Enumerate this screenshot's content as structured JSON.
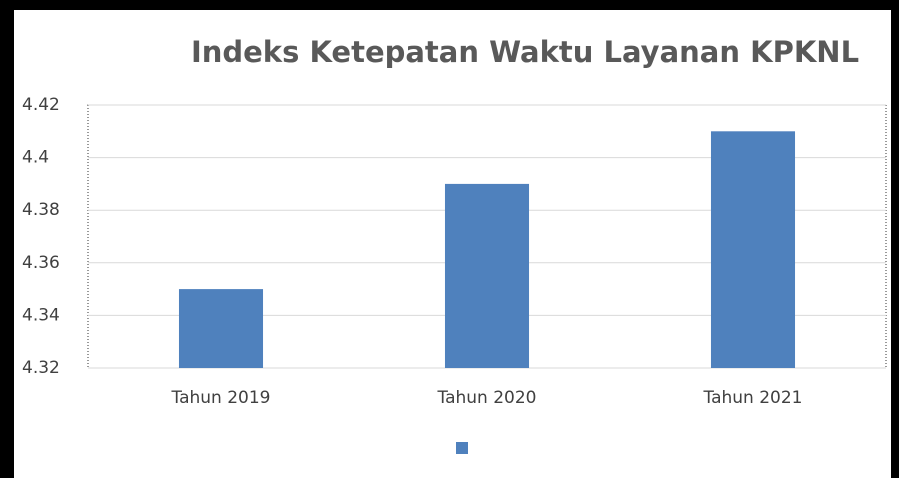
{
  "chart_data": {
    "type": "bar",
    "title": "Indeks Ketepatan Waktu Layanan KPKNL",
    "categories": [
      "Tahun 2019",
      "Tahun 2020",
      "Tahun 2021"
    ],
    "values": [
      4.35,
      4.39,
      4.41
    ],
    "color": "#4f81bd",
    "ylim": [
      4.32,
      4.42
    ],
    "yticks": [
      4.32,
      4.34,
      4.36,
      4.38,
      4.4,
      4.42
    ],
    "grid": true
  }
}
